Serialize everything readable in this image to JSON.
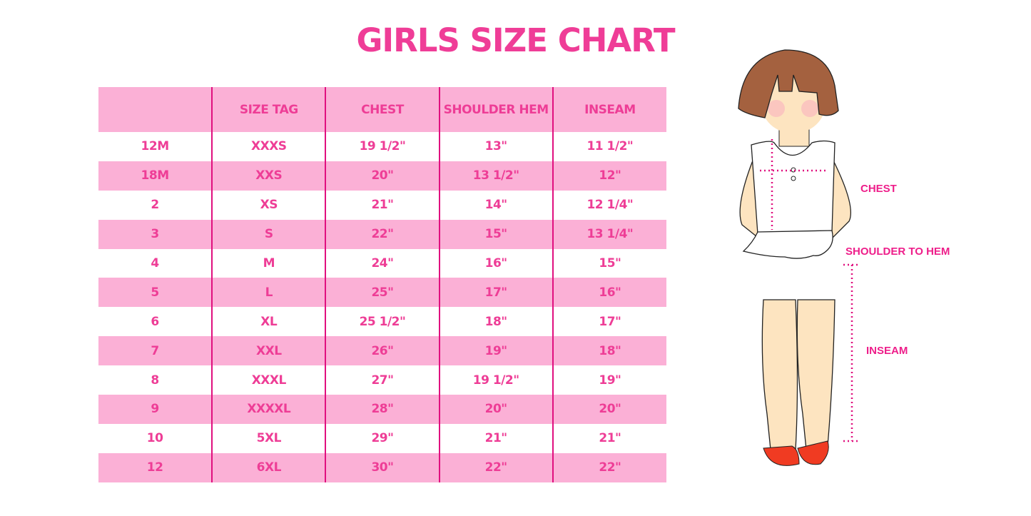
{
  "title": "GIRLS SIZE CHART",
  "table": {
    "headers": [
      "",
      "SIZE TAG",
      "CHEST",
      "SHOULDER HEM",
      "INSEAM"
    ],
    "rows": [
      [
        "12M",
        "XXXS",
        "19 1/2\"",
        "13\"",
        "11 1/2\""
      ],
      [
        "18M",
        "XXS",
        "20\"",
        "13 1/2\"",
        "12\""
      ],
      [
        "2",
        "XS",
        "21\"",
        "14\"",
        "12 1/4\""
      ],
      [
        "3",
        "S",
        "22\"",
        "15\"",
        "13 1/4\""
      ],
      [
        "4",
        "M",
        "24\"",
        "16\"",
        "15\""
      ],
      [
        "5",
        "L",
        "25\"",
        "17\"",
        "16\""
      ],
      [
        "6",
        "XL",
        "25 1/2\"",
        "18\"",
        "17\""
      ],
      [
        "7",
        "XXL",
        "26\"",
        "19\"",
        "18\""
      ],
      [
        "8",
        "XXXL",
        "27\"",
        "19 1/2\"",
        "19\""
      ],
      [
        "9",
        "XXXXL",
        "28\"",
        "20\"",
        "20\""
      ],
      [
        "10",
        "5XL",
        "29\"",
        "21\"",
        "21\""
      ],
      [
        "12",
        "6XL",
        "30\"",
        "22\"",
        "22\""
      ]
    ]
  },
  "figure": {
    "labels": {
      "chest": "CHEST",
      "shoulder_to_hem": "SHOULDER TO HEM",
      "inseam": "INSEAM"
    }
  },
  "colors": {
    "accent": "#ee3d96",
    "row_fill": "#fbb0d6",
    "divider": "#e0107f"
  }
}
